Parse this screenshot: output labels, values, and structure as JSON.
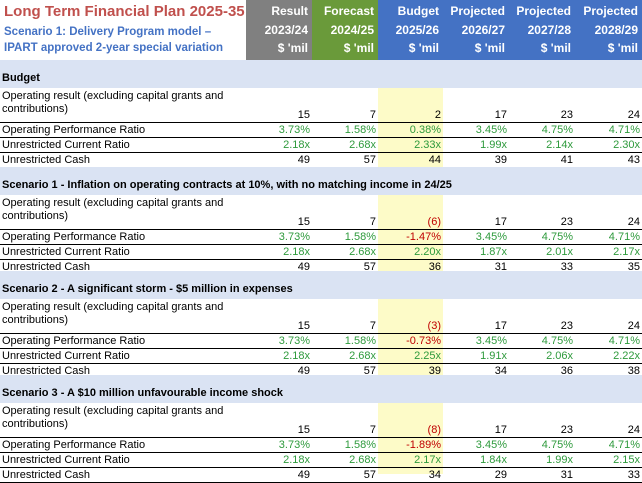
{
  "header": {
    "title": "Long Term Financial Plan 2025-35",
    "subtitle_line1": "Scenario 1: Delivery Program model –",
    "subtitle_line2": "IPART approved 2-year special variation",
    "columns": [
      {
        "l1": "Result",
        "l2": "2023/24",
        "l3": "$ 'mil",
        "bg": "#808080"
      },
      {
        "l1": "Forecast",
        "l2": "2024/25",
        "l3": "$ 'mil",
        "bg": "#6a9a3a"
      },
      {
        "l1": "Budget",
        "l2": "2025/26",
        "l3": "$ 'mil",
        "bg": "#4472c4"
      },
      {
        "l1": "Projected",
        "l2": "2026/27",
        "l3": "$ 'mil",
        "bg": "#4472c4"
      },
      {
        "l1": "Projected",
        "l2": "2027/28",
        "l3": "$ 'mil",
        "bg": "#4472c4"
      },
      {
        "l1": "Projected",
        "l2": "2028/29",
        "l3": "$ 'mil",
        "bg": "#4472c4"
      }
    ]
  },
  "sections": [
    {
      "title": "Budget",
      "rows": [
        {
          "label": "Operating result (excluding capital grants and contributions)",
          "values": [
            "15",
            "7",
            "2",
            "17",
            "23",
            "24"
          ],
          "kind": "num"
        },
        {
          "label": "Operating Performance Ratio",
          "values": [
            "3.73%",
            "1.58%",
            "0.38%",
            "3.45%",
            "4.75%",
            "4.71%"
          ],
          "kind": "green"
        },
        {
          "label": "Unrestricted Current Ratio",
          "values": [
            "2.18x",
            "2.68x",
            "2.33x",
            "1.99x",
            "2.14x",
            "2.30x"
          ],
          "kind": "green"
        },
        {
          "label": "Unrestricted Cash",
          "values": [
            "49",
            "57",
            "44",
            "39",
            "41",
            "43"
          ],
          "kind": "num"
        }
      ]
    },
    {
      "title": "Scenario 1 - Inflation on operating contracts at 10%, with no matching income in 24/25",
      "rows": [
        {
          "label": "Operating result (excluding capital grants and contributions)",
          "values": [
            "15",
            "7",
            "(6)",
            "17",
            "23",
            "24"
          ],
          "kind": "num",
          "red": [
            2
          ]
        },
        {
          "label": "Operating Performance Ratio",
          "values": [
            "3.73%",
            "1.58%",
            "-1.47%",
            "3.45%",
            "4.75%",
            "4.71%"
          ],
          "kind": "green",
          "red": [
            2
          ]
        },
        {
          "label": "Unrestricted Current Ratio",
          "values": [
            "2.18x",
            "2.68x",
            "2.20x",
            "1.87x",
            "2.01x",
            "2.17x"
          ],
          "kind": "green"
        },
        {
          "label": "Unrestricted Cash",
          "values": [
            "49",
            "57",
            "36",
            "31",
            "33",
            "35"
          ],
          "kind": "num"
        }
      ]
    },
    {
      "title": "Scenario 2 - A significant storm - $5 million in expenses",
      "rows": [
        {
          "label": "Operating result (excluding capital grants and contributions)",
          "values": [
            "15",
            "7",
            "(3)",
            "17",
            "23",
            "24"
          ],
          "kind": "num",
          "red": [
            2
          ]
        },
        {
          "label": "Operating Performance Ratio",
          "values": [
            "3.73%",
            "1.58%",
            "-0.73%",
            "3.45%",
            "4.75%",
            "4.71%"
          ],
          "kind": "green",
          "red": [
            2
          ]
        },
        {
          "label": "Unrestricted Current Ratio",
          "values": [
            "2.18x",
            "2.68x",
            "2.25x",
            "1.91x",
            "2.06x",
            "2.22x"
          ],
          "kind": "green"
        },
        {
          "label": "Unrestricted Cash",
          "values": [
            "49",
            "57",
            "39",
            "34",
            "36",
            "38"
          ],
          "kind": "num"
        }
      ]
    },
    {
      "title": "Scenario 3 - A $10 million unfavourable income shock",
      "rows": [
        {
          "label": "Operating result (excluding capital grants and contributions)",
          "values": [
            "15",
            "7",
            "(8)",
            "17",
            "23",
            "24"
          ],
          "kind": "num",
          "red": [
            2
          ]
        },
        {
          "label": "Operating Performance Ratio",
          "values": [
            "3.73%",
            "1.58%",
            "-1.89%",
            "3.45%",
            "4.75%",
            "4.71%"
          ],
          "kind": "green",
          "red": [
            2
          ]
        },
        {
          "label": "Unrestricted Current Ratio",
          "values": [
            "2.18x",
            "2.68x",
            "2.17x",
            "1.84x",
            "1.99x",
            "2.15x"
          ],
          "kind": "green"
        },
        {
          "label": "Unrestricted Cash",
          "values": [
            "49",
            "57",
            "34",
            "29",
            "31",
            "33"
          ],
          "kind": "num"
        }
      ]
    }
  ],
  "colors": {
    "section_bg": "#dae3f3",
    "budget_bg": "#fdfbc8",
    "positive": "#2e9a3c",
    "negative": "#c00000",
    "title": "#c0504d",
    "subtitle": "#4472c4"
  }
}
